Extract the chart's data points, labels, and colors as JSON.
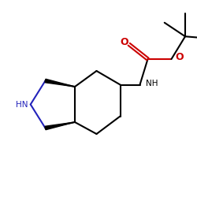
{
  "bg_color": "#ffffff",
  "bond_color": "#000000",
  "bond_width": 1.5,
  "n_color": "#2222bb",
  "o_color": "#cc0000",
  "figsize": [
    2.5,
    2.5
  ],
  "dpi": 100,
  "xlim": [
    0,
    10
  ],
  "ylim": [
    0,
    10
  ]
}
